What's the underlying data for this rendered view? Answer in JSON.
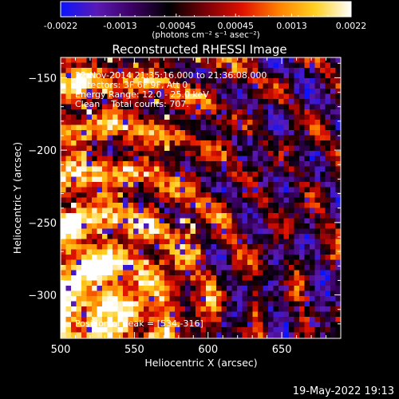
{
  "colorbar": {
    "tick_labels": [
      "-0.0022",
      "-0.0013",
      "-0.00045",
      "0.00045",
      "0.0013",
      "0.0022"
    ],
    "tick_values": [
      -0.0022,
      -0.0013,
      -0.00045,
      0.00045,
      0.0013,
      0.0022
    ],
    "range": [
      -0.0022,
      0.0022
    ],
    "unit_label": "(photons cm⁻² s⁻¹ asec⁻²)",
    "colors": [
      "#0a14ff",
      "#5a1ab4",
      "#3a0060",
      "#000000",
      "#7a0008",
      "#e01000",
      "#ff8000",
      "#ffd020",
      "#ffffff"
    ]
  },
  "annotations": {
    "time": "22-Nov-2014 21:35:16.000 to 21:36:08.000",
    "detectors": "Detectors: 3F 6F 9F, Att 0",
    "energy": "Energy Range: 12.0 - 25.0 keV",
    "clean": "Clean    Total counts: 707.",
    "peak": "Position of Peak = [534,-316]"
  },
  "footer": {
    "date": "19-May-2022 19:13"
  },
  "chart_data": {
    "type": "heatmap",
    "title": "Reconstructed RHESSI Image",
    "xlabel": "Heliocentric X (arcsec)",
    "ylabel": "Heliocentric Y (arcsec)",
    "xlim": [
      500,
      690
    ],
    "ylim": [
      -330,
      -136
    ],
    "xticks": [
      500,
      550,
      600,
      650
    ],
    "yticks": [
      -150,
      -200,
      -250,
      -300
    ],
    "xtick_labels": [
      "500",
      "550",
      "600",
      "650"
    ],
    "ytick_labels": [
      "−150",
      "−200",
      "−250",
      "−300"
    ],
    "peak_position": [
      534,
      -316
    ],
    "value_range": [
      -0.0022,
      0.0022
    ]
  }
}
